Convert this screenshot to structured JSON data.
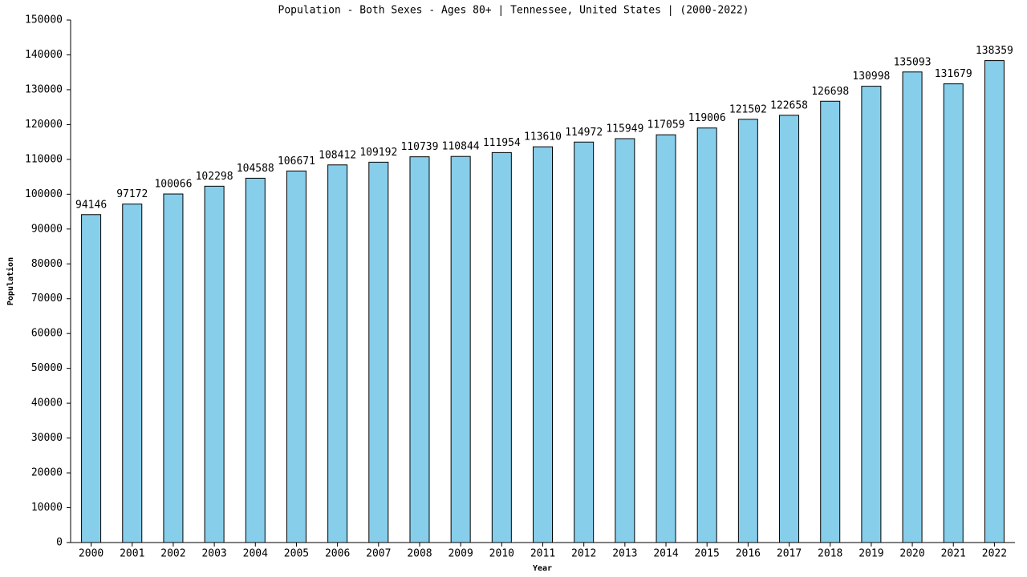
{
  "chart_data": {
    "type": "bar",
    "title": "Population - Both Sexes - Ages 80+ | Tennessee, United States |  (2000-2022)",
    "x_label": "Year",
    "y_label": "Population",
    "categories": [
      "2000",
      "2001",
      "2002",
      "2003",
      "2004",
      "2005",
      "2006",
      "2007",
      "2008",
      "2009",
      "2010",
      "2011",
      "2012",
      "2013",
      "2014",
      "2015",
      "2016",
      "2017",
      "2018",
      "2019",
      "2020",
      "2021",
      "2022"
    ],
    "values": [
      94146,
      97172,
      100066,
      102298,
      104588,
      106671,
      108412,
      109192,
      110739,
      110844,
      111954,
      113610,
      114972,
      115949,
      117059,
      119006,
      121502,
      122658,
      126698,
      130998,
      135093,
      131679,
      138359
    ],
    "color": "#87ceeb",
    "ylim": [
      0,
      150000
    ],
    "yticks": [
      0,
      10000,
      20000,
      30000,
      40000,
      50000,
      60000,
      70000,
      80000,
      90000,
      100000,
      110000,
      120000,
      130000,
      140000,
      150000
    ],
    "grid": false
  }
}
